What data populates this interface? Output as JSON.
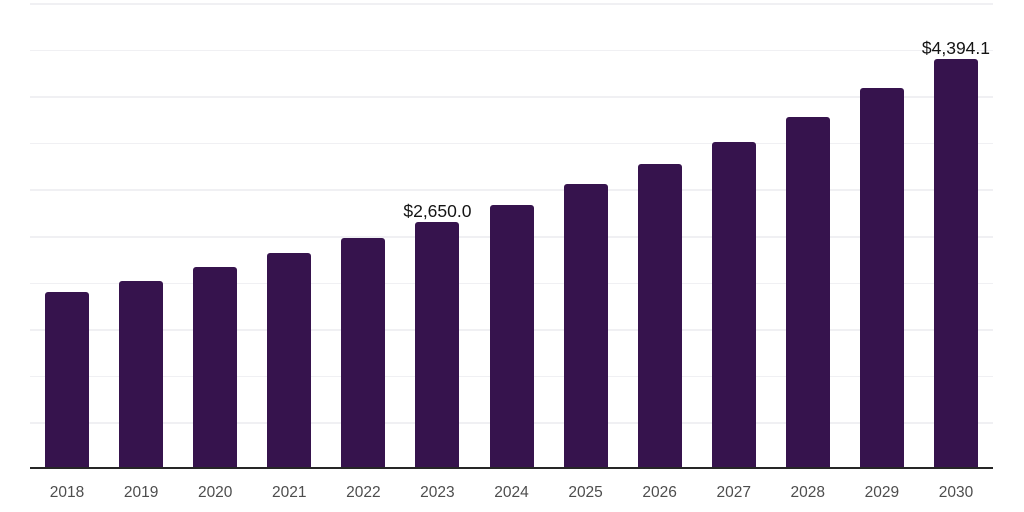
{
  "chart_data": {
    "type": "bar",
    "title": "",
    "xlabel": "",
    "ylabel": "",
    "categories": [
      "2018",
      "2019",
      "2020",
      "2021",
      "2022",
      "2023",
      "2024",
      "2025",
      "2026",
      "2027",
      "2028",
      "2029",
      "2030"
    ],
    "values": [
      1900,
      2020,
      2170,
      2320,
      2480,
      2650.0,
      2830,
      3060,
      3270,
      3510,
      3780,
      4090,
      4394.1
    ],
    "value_labels": {
      "2023": "$2,650.0",
      "2030": "$4,394.1"
    },
    "ylim": [
      0,
      5000
    ],
    "gridline_interval": 500,
    "grid": "on",
    "legend": "none",
    "colors": {
      "bar": "#36134d",
      "gridline": "#f0f0f3",
      "axis_line": "#262626",
      "tick_label": "#4d4d4d",
      "data_label": "#141414",
      "background": "#ffffff"
    }
  }
}
